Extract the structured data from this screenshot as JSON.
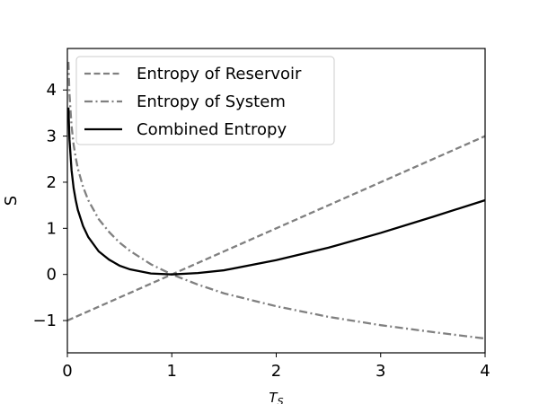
{
  "chart_data": {
    "type": "line",
    "title": "",
    "xlabel": "T_S",
    "ylabel": "S",
    "xlim": [
      0,
      4
    ],
    "ylim": [
      -1.7,
      4.9
    ],
    "xticks": [
      0,
      1,
      2,
      3,
      4
    ],
    "xtick_labels": [
      "0",
      "1",
      "2",
      "3",
      "4"
    ],
    "yticks": [
      -1,
      0,
      1,
      2,
      3,
      4
    ],
    "ytick_labels": [
      "−1",
      "0",
      "1",
      "2",
      "3",
      "4"
    ],
    "grid": false,
    "legend_position": "top-left",
    "series": [
      {
        "name": "Entropy of Reservoir",
        "color": "#808080",
        "dash": "dashed",
        "x": [
          0,
          0.5,
          1,
          1.5,
          2,
          2.5,
          3,
          3.5,
          4
        ],
        "y": [
          -1,
          -0.5,
          0,
          0.5,
          1,
          1.5,
          2,
          2.5,
          3
        ]
      },
      {
        "name": "Entropy of System",
        "color": "#808080",
        "dash": "dashdot",
        "x": [
          0.01,
          0.02,
          0.04,
          0.06,
          0.08,
          0.1,
          0.15,
          0.2,
          0.3,
          0.4,
          0.5,
          0.6,
          0.8,
          1,
          1.25,
          1.5,
          2,
          2.5,
          3,
          3.5,
          4
        ],
        "y": [
          4.61,
          3.91,
          3.22,
          2.81,
          2.53,
          2.3,
          1.9,
          1.61,
          1.2,
          0.92,
          0.69,
          0.51,
          0.22,
          0,
          -0.22,
          -0.41,
          -0.69,
          -0.92,
          -1.1,
          -1.25,
          -1.39
        ]
      },
      {
        "name": "Combined Entropy",
        "color": "#000000",
        "dash": "solid",
        "x": [
          0.01,
          0.02,
          0.04,
          0.06,
          0.08,
          0.1,
          0.15,
          0.2,
          0.3,
          0.4,
          0.5,
          0.6,
          0.8,
          1,
          1.25,
          1.5,
          2,
          2.5,
          3,
          3.5,
          4
        ],
        "y": [
          3.62,
          2.93,
          2.26,
          1.87,
          1.61,
          1.4,
          1.05,
          0.81,
          0.5,
          0.32,
          0.19,
          0.11,
          0.02,
          0,
          0.03,
          0.09,
          0.31,
          0.58,
          0.9,
          1.25,
          1.61
        ]
      }
    ]
  }
}
